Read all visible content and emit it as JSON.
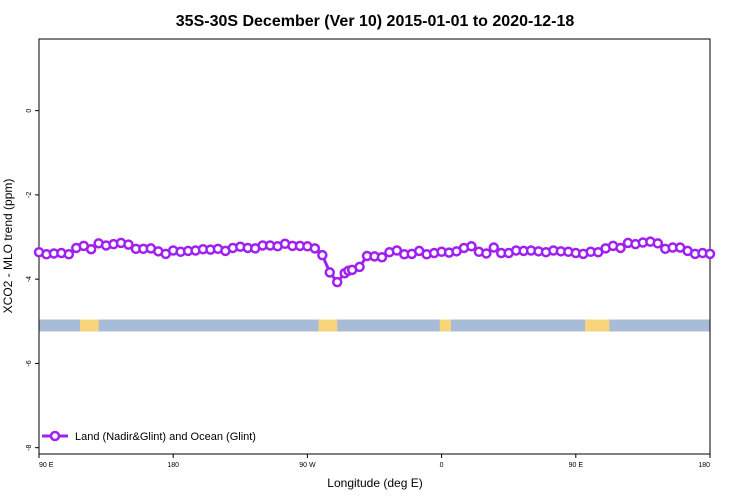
{
  "chart_data": {
    "type": "line",
    "title": "35S-30S December (Ver 10)   2015-01-01 to 2020-12-18",
    "xlabel": "Longitude (deg E)",
    "ylabel": "XCO2 - MLO trend (ppm)",
    "xlim": [
      90,
      450
    ],
    "ylim": [
      -8.15,
      1.7
    ],
    "x_ticks": [
      {
        "value": 90,
        "label": "90 E"
      },
      {
        "value": 162,
        "label": "180"
      },
      {
        "value": 234,
        "label": "90 W"
      },
      {
        "value": 306,
        "label": "0"
      },
      {
        "value": 378,
        "label": "90 E"
      },
      {
        "value": 450,
        "label": "180"
      }
    ],
    "y_ticks": [
      0,
      -2,
      -4,
      -6,
      -8
    ],
    "grid": false,
    "legend_position": "bottom-left",
    "series": [
      {
        "name": "Land (Nadir&Glint) and Ocean (Glint)",
        "color": "#a020f0",
        "x": [
          90,
          94,
          98,
          102,
          106,
          110,
          114,
          118,
          122,
          126,
          130,
          134,
          138,
          142,
          146,
          150,
          154,
          158,
          162,
          166,
          170,
          174,
          178,
          182,
          186,
          190,
          194,
          198,
          202,
          206,
          210,
          214,
          218,
          222,
          226,
          230,
          234,
          238,
          242,
          246,
          250,
          254,
          256,
          258,
          262,
          266,
          270,
          274,
          278,
          282,
          286,
          290,
          294,
          298,
          302,
          306,
          310,
          314,
          318,
          322,
          326,
          330,
          334,
          338,
          342,
          346,
          350,
          354,
          358,
          362,
          366,
          370,
          374,
          378,
          382,
          386,
          390,
          394,
          398,
          402,
          406,
          410,
          414,
          418,
          422,
          426,
          430,
          434,
          438,
          442,
          446,
          450
        ],
        "y": [
          -3.36,
          -3.41,
          -3.39,
          -3.38,
          -3.41,
          -3.26,
          -3.21,
          -3.29,
          -3.15,
          -3.2,
          -3.17,
          -3.14,
          -3.18,
          -3.28,
          -3.28,
          -3.27,
          -3.34,
          -3.4,
          -3.32,
          -3.35,
          -3.33,
          -3.32,
          -3.29,
          -3.3,
          -3.28,
          -3.33,
          -3.26,
          -3.23,
          -3.26,
          -3.27,
          -3.2,
          -3.2,
          -3.22,
          -3.16,
          -3.21,
          -3.21,
          -3.22,
          -3.27,
          -3.43,
          -3.84,
          -4.07,
          -3.86,
          -3.8,
          -3.78,
          -3.71,
          -3.45,
          -3.46,
          -3.48,
          -3.36,
          -3.32,
          -3.41,
          -3.4,
          -3.33,
          -3.41,
          -3.38,
          -3.35,
          -3.37,
          -3.34,
          -3.26,
          -3.22,
          -3.35,
          -3.39,
          -3.25,
          -3.38,
          -3.38,
          -3.32,
          -3.33,
          -3.32,
          -3.34,
          -3.36,
          -3.32,
          -3.34,
          -3.35,
          -3.38,
          -3.4,
          -3.35,
          -3.36,
          -3.27,
          -3.21,
          -3.26,
          -3.14,
          -3.17,
          -3.13,
          -3.11,
          -3.15,
          -3.28,
          -3.25,
          -3.25,
          -3.33,
          -3.4,
          -3.38,
          -3.4
        ]
      }
    ],
    "land_ocean_band": {
      "y": -5.1,
      "ocean_color": "#a8bcd8",
      "land_color": "#f8d57a",
      "land_segments": [
        [
          112,
          122
        ],
        [
          240,
          250
        ],
        [
          305,
          311
        ],
        [
          383,
          396
        ]
      ]
    }
  }
}
